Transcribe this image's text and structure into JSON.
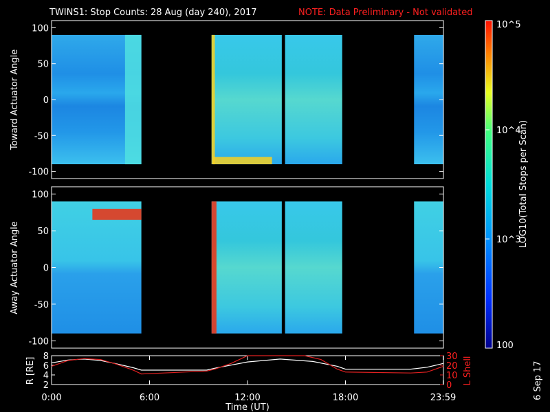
{
  "header": {
    "title": "TWINS1: Stop Counts: 28 Aug (day 240), 2017",
    "note": "NOTE: Data Preliminary - Not validated"
  },
  "side_stamp": "6 Sep 17",
  "colors": {
    "frame": "#ffffff",
    "note": "#ff2020",
    "r_line": "#ffffff",
    "l_line": "#e02020",
    "background": "#000000"
  },
  "chart_data": [
    {
      "type": "heatmap",
      "title": "",
      "ylabel": "Toward Actuator Angle",
      "ylim": [
        -110,
        110
      ],
      "yticks": [
        100,
        50,
        0,
        -50,
        -100
      ],
      "ytick_labels": [
        "100",
        "50",
        "0",
        "-50",
        "-100"
      ],
      "data_extent": [
        -90,
        90
      ],
      "xlim": [
        0,
        24
      ],
      "time_spans_hr": [
        [
          0,
          5.5
        ],
        [
          9.8,
          14.1
        ],
        [
          14.3,
          17.8
        ],
        [
          22.2,
          24
        ]
      ],
      "features": [
        {
          "t_hr": [
            4.5,
            5.5
          ],
          "level_log": 3.3,
          "note": "bright vertical bands"
        },
        {
          "t_hr": [
            9.8,
            10.0
          ],
          "level_log": 4.5,
          "note": "spike"
        },
        {
          "t_hr": [
            9.9,
            13.5
          ],
          "angle": [
            -90,
            -80
          ],
          "level_log": 4.3
        }
      ]
    },
    {
      "type": "heatmap",
      "title": "",
      "ylabel": "Away Actuator Angle",
      "ylim": [
        -110,
        110
      ],
      "yticks": [
        100,
        50,
        0,
        -50,
        -100
      ],
      "ytick_labels": [
        "100",
        "50",
        "0",
        "-50",
        "-100"
      ],
      "data_extent": [
        -90,
        90
      ],
      "xlim": [
        0,
        24
      ],
      "time_spans_hr": [
        [
          0,
          5.5
        ],
        [
          9.8,
          14.1
        ],
        [
          14.3,
          17.8
        ],
        [
          22.2,
          24
        ]
      ],
      "features": [
        {
          "t_hr": [
            2.5,
            5.5
          ],
          "angle": [
            65,
            80
          ],
          "level_log": 4.9,
          "note": "intense band"
        },
        {
          "t_hr": [
            9.8,
            10.1
          ],
          "level_log": 4.9,
          "note": "spike"
        }
      ]
    },
    {
      "type": "line",
      "title": "",
      "xlabel": "Time (UT)",
      "x_ticks_hr": [
        0,
        6,
        12,
        18,
        23.98
      ],
      "x_tick_labels": [
        "0:00",
        "6:00",
        "12:00",
        "18:00",
        "23:59"
      ],
      "ylabel_left": "R [RE]",
      "ylim_left": [
        2,
        8
      ],
      "yticks_left": [
        "2",
        "4",
        "6",
        "8"
      ],
      "ylabel_right": "L Shell",
      "ylim_right": [
        0,
        30
      ],
      "yticks_right": [
        "0",
        "10",
        "20",
        "30"
      ],
      "series": [
        {
          "axis": "left",
          "x": [
            0,
            1,
            2,
            3,
            4,
            5,
            5.5,
            9.5,
            10,
            12,
            14,
            16,
            17.5,
            18,
            22,
            23,
            24
          ],
          "y": [
            6.5,
            7.1,
            7.3,
            7.0,
            6.3,
            5.5,
            5.0,
            5.0,
            5.4,
            6.7,
            7.3,
            6.8,
            5.8,
            5.2,
            5.2,
            5.6,
            6.4
          ]
        },
        {
          "axis": "right",
          "x": [
            0,
            1,
            2,
            3,
            4,
            5,
            5.5,
            9.5,
            10,
            11,
            12.0,
            15.5,
            16.5,
            17.5,
            18,
            22,
            23,
            24
          ],
          "y": [
            19,
            25,
            27,
            26,
            21,
            15,
            11,
            14,
            16,
            22,
            31,
            31,
            26,
            16,
            13,
            12,
            13,
            19
          ]
        }
      ]
    },
    {
      "type": "colorbar",
      "label": "LOG10(Total Stops per Scan)",
      "min": 100,
      "max": 100000,
      "scale": "log",
      "tick_labels": [
        "100",
        "10^3",
        "10^4",
        "10^5"
      ],
      "tick_values": [
        100,
        1000,
        10000,
        100000
      ]
    }
  ]
}
